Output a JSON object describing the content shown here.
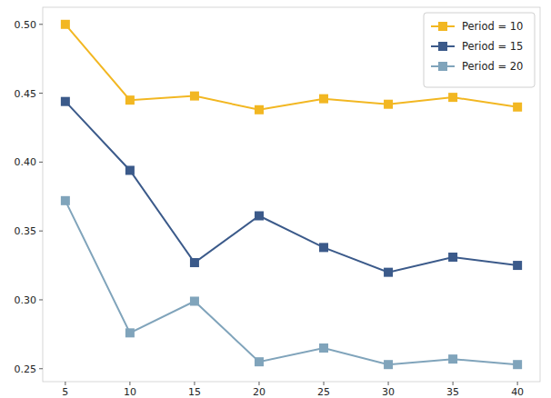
{
  "chart_data": {
    "type": "line",
    "x": [
      5,
      10,
      15,
      20,
      25,
      30,
      35,
      40
    ],
    "series": [
      {
        "name": "Period = 10",
        "color": "#f2b722",
        "marker": "square",
        "line_style": "solid",
        "values": [
          0.5,
          0.445,
          0.448,
          0.438,
          0.446,
          0.442,
          0.447,
          0.44
        ]
      },
      {
        "name": "Period = 15",
        "color": "#3b5a8a",
        "marker": "square",
        "line_style": "solid",
        "values": [
          0.444,
          0.394,
          0.327,
          0.361,
          0.338,
          0.32,
          0.331,
          0.325
        ]
      },
      {
        "name": "Period = 20",
        "color": "#80a4bb",
        "marker": "square",
        "line_style": "solid",
        "values": [
          0.372,
          0.276,
          0.299,
          0.255,
          0.265,
          0.253,
          0.257,
          0.253
        ]
      }
    ],
    "xlim": [
      3.25,
      41.75
    ],
    "xticks": [
      5,
      10,
      15,
      20,
      25,
      30,
      35,
      40
    ],
    "ylim": [
      0.2406,
      0.5124
    ],
    "yticks": [
      0.25,
      {
        "value": 0.3,
        "label": "0.30"
      },
      0.35,
      {
        "value": 0.4,
        "label": "0.40"
      },
      0.45,
      {
        "value": 0.5,
        "label": "0.50"
      }
    ],
    "grid": false,
    "legend": "upper right"
  }
}
